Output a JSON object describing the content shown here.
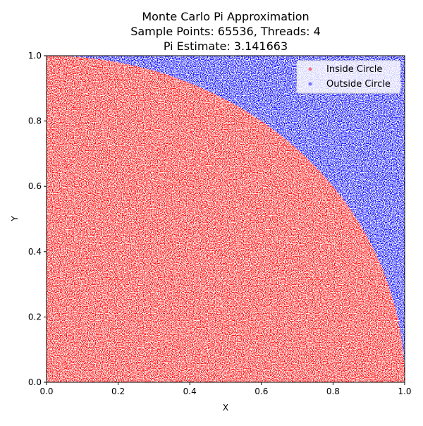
{
  "chart_data": {
    "type": "scatter",
    "title": "Monte Carlo Pi Approximation",
    "subtitle_line_1": "Sample Points: 65536, Threads: 4",
    "subtitle_line_2": "Pi Estimate: 3.141663",
    "sample_points": 65536,
    "threads": 4,
    "pi_estimate": 3.141663,
    "xlabel": "X",
    "ylabel": "Y",
    "xlim": [
      0.0,
      1.0
    ],
    "ylim": [
      0.0,
      1.0
    ],
    "x_ticks": [
      "0.0",
      "0.2",
      "0.4",
      "0.6",
      "0.8",
      "1.0"
    ],
    "y_ticks": [
      "0.0",
      "0.2",
      "0.4",
      "0.6",
      "0.8",
      "1.0"
    ],
    "grid": false,
    "legend_position": "top-right",
    "series": [
      {
        "name": "Inside Circle",
        "color": "#ff0000",
        "region": "x^2 + y^2 <= 1",
        "alpha": 0.5
      },
      {
        "name": "Outside Circle",
        "color": "#0000ff",
        "region": "x^2 + y^2 > 1",
        "alpha": 0.5
      }
    ]
  }
}
